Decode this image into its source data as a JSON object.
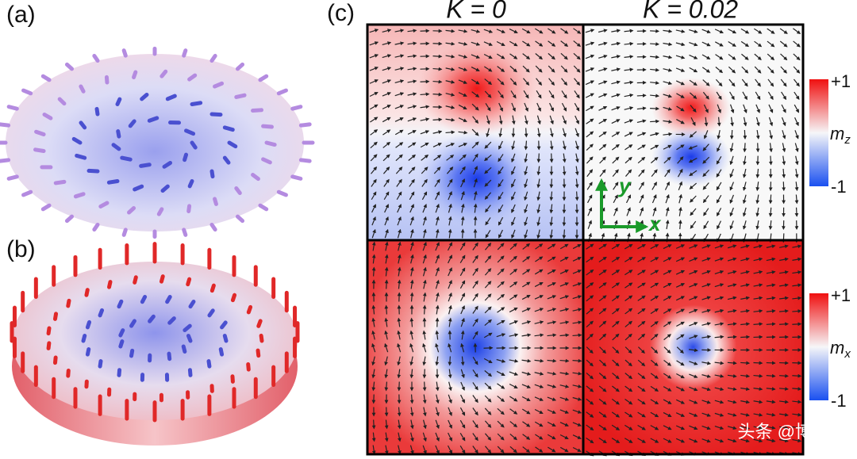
{
  "panels": {
    "a": {
      "label": "(a)"
    },
    "b": {
      "label": "(b)"
    },
    "c": {
      "label": "(c)",
      "columns": [
        "K = 0",
        "K = 0.02"
      ],
      "axes": {
        "y": "y",
        "x": "x"
      },
      "colorbars": [
        {
          "max": "+1",
          "symbol": "m",
          "subscript": "z",
          "min": "-1"
        },
        {
          "max": "+1",
          "symbol": "m",
          "subscript": "x",
          "min": "-1"
        }
      ]
    }
  },
  "watermark": "头条 @博科园"
}
